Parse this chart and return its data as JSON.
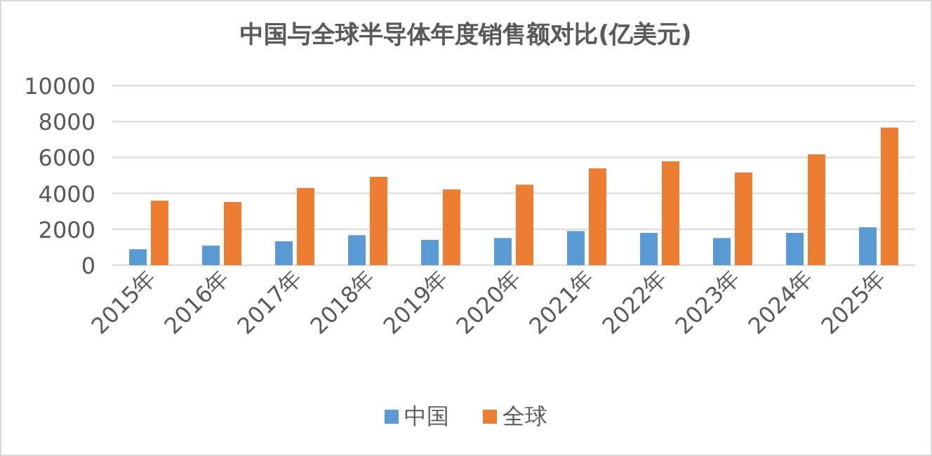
{
  "chart_data": {
    "type": "bar",
    "title": "中国与全球半导体年度销售额对比(亿美元)",
    "categories": [
      "2015年",
      "2016年",
      "2017年",
      "2018年",
      "2019年",
      "2020年",
      "2021年",
      "2022年",
      "2023年",
      "2024年",
      "2025年"
    ],
    "series": [
      {
        "name": "中国",
        "color": "#5b9bd5",
        "values": [
          890,
          1090,
          1330,
          1670,
          1410,
          1510,
          1900,
          1800,
          1510,
          1800,
          2110
        ]
      },
      {
        "name": "全球",
        "color": "#ed7d31",
        "values": [
          3590,
          3520,
          4300,
          4920,
          4220,
          4480,
          5390,
          5780,
          5160,
          6170,
          7660
        ]
      }
    ],
    "ylim": [
      0,
      10000
    ],
    "yticks": [
      0,
      2000,
      4000,
      6000,
      8000,
      10000
    ],
    "grid": "y",
    "legend": "bottom"
  }
}
